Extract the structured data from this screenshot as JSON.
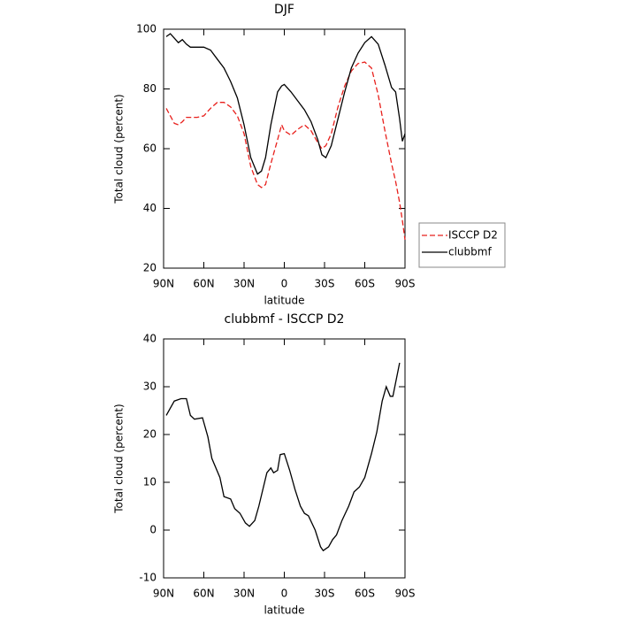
{
  "chart_data": [
    {
      "type": "line",
      "title": "DJF",
      "x_label": "latitude",
      "y_label": "Total cloud (percent)",
      "x": [
        88,
        85,
        82,
        79,
        76,
        73,
        70,
        65,
        60,
        55,
        50,
        45,
        40,
        35,
        30,
        25,
        20,
        17,
        14,
        10,
        5,
        2,
        0,
        -5,
        -10,
        -15,
        -20,
        -25,
        -28,
        -31,
        -35,
        -40,
        -45,
        -50,
        -55,
        -60,
        -65,
        -70,
        -75,
        -80,
        -83,
        -86,
        -88,
        -90
      ],
      "series": [
        {
          "name": "ISCCP D2",
          "color": "#e8201c",
          "line_style": "dashed",
          "values": [
            73.5,
            71,
            68.5,
            68,
            69,
            70.5,
            70.5,
            70.5,
            71,
            73.5,
            75.5,
            75.5,
            74,
            71,
            65,
            54,
            48,
            47,
            48,
            55,
            63,
            68,
            66,
            64.5,
            66.5,
            68,
            66,
            62,
            60,
            61,
            65,
            74,
            81,
            86,
            88.5,
            89,
            87,
            78,
            66,
            55,
            49,
            42,
            36,
            29.5
          ]
        },
        {
          "name": "clubbmf",
          "color": "#000000",
          "line_style": "solid",
          "values": [
            97.5,
            98.5,
            97,
            95.5,
            96.5,
            95,
            94,
            94,
            94,
            93,
            90,
            87,
            82.5,
            77,
            68,
            57,
            51.5,
            52.5,
            57,
            68,
            79,
            81,
            81.5,
            79,
            76,
            73,
            69,
            63,
            58,
            57,
            61,
            70,
            79,
            87,
            92,
            95.5,
            97.5,
            95,
            88,
            80.5,
            79,
            70,
            62.5,
            65
          ]
        }
      ],
      "xlim": [
        90,
        -90
      ],
      "xticks": [
        {
          "value": 90,
          "label": "90N"
        },
        {
          "value": 60,
          "label": "60N"
        },
        {
          "value": 30,
          "label": "30N"
        },
        0,
        {
          "value": -30,
          "label": "30S"
        },
        {
          "value": -60,
          "label": "60S"
        },
        {
          "value": -90,
          "label": "90S"
        }
      ],
      "ylim": [
        20,
        100
      ],
      "yticks": [
        20,
        40,
        60,
        80,
        100
      ],
      "grid": false,
      "legend": "right"
    },
    {
      "type": "line",
      "title": "clubbmf - ISCCP D2",
      "x_label": "latitude",
      "y_label": "Total cloud (percent)",
      "x": [
        88,
        82,
        77,
        73,
        70,
        67,
        61,
        57,
        54,
        48,
        45,
        40,
        37,
        33,
        29,
        26,
        22,
        19,
        13,
        10,
        8,
        5,
        3,
        0,
        -4,
        -8,
        -12,
        -15,
        -18,
        -23,
        -27,
        -29,
        -33,
        -36,
        -39,
        -43,
        -48,
        -52,
        -56,
        -60,
        -65,
        -69,
        -73,
        -76,
        -79,
        -81,
        -86
      ],
      "values": [
        24,
        27,
        27.5,
        27.5,
        24,
        23.2,
        23.5,
        19.5,
        15,
        11,
        7,
        6.5,
        4.5,
        3.5,
        1.5,
        0.8,
        2,
        5,
        12,
        13,
        12,
        12.5,
        15.8,
        16,
        12.5,
        8.5,
        5,
        3.5,
        3,
        0,
        -3.5,
        -4.3,
        -3.5,
        -2,
        -1,
        2,
        5,
        8,
        9,
        11,
        16,
        20.5,
        27,
        30,
        28,
        28,
        35
      ],
      "color": "#000000",
      "xlim": [
        90,
        -90
      ],
      "xticks": [
        {
          "value": 90,
          "label": "90N"
        },
        {
          "value": 60,
          "label": "60N"
        },
        {
          "value": 30,
          "label": "30N"
        },
        0,
        {
          "value": -30,
          "label": "30S"
        },
        {
          "value": -60,
          "label": "60S"
        },
        {
          "value": -90,
          "label": "90S"
        }
      ],
      "ylim": [
        -10,
        40
      ],
      "yticks": [
        -10,
        0,
        10,
        20,
        30,
        40
      ],
      "grid": false
    }
  ]
}
